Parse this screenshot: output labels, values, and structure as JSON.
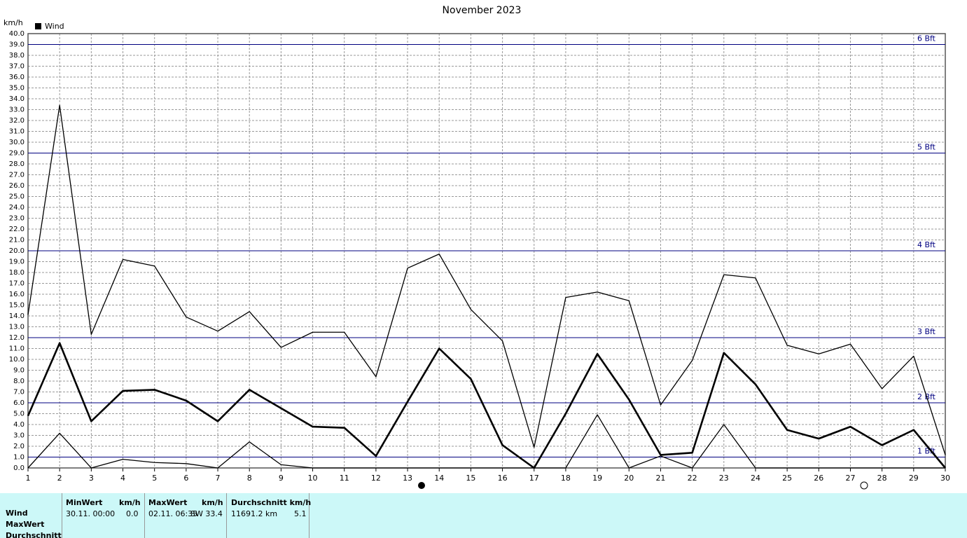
{
  "chart_data": {
    "type": "line",
    "title": "November 2023",
    "y_label": "km/h",
    "legend_label": "Wind",
    "legend_color": "#000000",
    "x": [
      1,
      2,
      3,
      4,
      5,
      6,
      7,
      8,
      9,
      10,
      11,
      12,
      13,
      14,
      15,
      16,
      17,
      18,
      19,
      20,
      21,
      22,
      23,
      24,
      25,
      26,
      27,
      28,
      29,
      30
    ],
    "xlim": [
      1,
      30
    ],
    "xticks": [
      1,
      2,
      3,
      4,
      5,
      6,
      7,
      8,
      9,
      10,
      11,
      12,
      13,
      14,
      15,
      16,
      17,
      18,
      19,
      20,
      21,
      22,
      23,
      24,
      25,
      26,
      27,
      28,
      29,
      30
    ],
    "ylim": [
      0,
      40
    ],
    "yticks": [
      {
        "value": 0,
        "label": "0.0"
      },
      {
        "value": 1,
        "label": "1.0"
      },
      {
        "value": 2,
        "label": "2.0"
      },
      {
        "value": 3,
        "label": "3.0"
      },
      {
        "value": 4,
        "label": "4.0"
      },
      {
        "value": 5,
        "label": "5.0"
      },
      {
        "value": 6,
        "label": "6.0"
      },
      {
        "value": 7,
        "label": "7.0"
      },
      {
        "value": 8,
        "label": "8.0"
      },
      {
        "value": 9,
        "label": "9.0"
      },
      {
        "value": 10,
        "label": "10.0"
      },
      {
        "value": 11,
        "label": "11.0"
      },
      {
        "value": 12,
        "label": "12.0"
      },
      {
        "value": 13,
        "label": "13.0"
      },
      {
        "value": 14,
        "label": "14.0"
      },
      {
        "value": 15,
        "label": "15.0"
      },
      {
        "value": 16,
        "label": "16.0"
      },
      {
        "value": 17,
        "label": "17.0"
      },
      {
        "value": 18,
        "label": "18.0"
      },
      {
        "value": 19,
        "label": "19.0"
      },
      {
        "value": 20,
        "label": "20.0"
      },
      {
        "value": 21,
        "label": "21.0"
      },
      {
        "value": 22,
        "label": "22.0"
      },
      {
        "value": 23,
        "label": "23.0"
      },
      {
        "value": 24,
        "label": "24.0"
      },
      {
        "value": 25,
        "label": "25.0"
      },
      {
        "value": 26,
        "label": "26.0"
      },
      {
        "value": 27,
        "label": "27.0"
      },
      {
        "value": 28,
        "label": "28.0"
      },
      {
        "value": 29,
        "label": "29.0"
      },
      {
        "value": 30,
        "label": "30.0"
      },
      {
        "value": 31,
        "label": "31.0"
      },
      {
        "value": 32,
        "label": "32.0"
      },
      {
        "value": 33,
        "label": "33.0"
      },
      {
        "value": 34,
        "label": "34.0"
      },
      {
        "value": 35,
        "label": "35.0"
      },
      {
        "value": 36,
        "label": "36.0"
      },
      {
        "value": 37,
        "label": "37.0"
      },
      {
        "value": 38,
        "label": "38.0"
      },
      {
        "value": 39,
        "label": "39.0"
      },
      {
        "value": 40,
        "label": "40.0"
      }
    ],
    "grid": true,
    "reference_lines": [
      {
        "value": 1,
        "label": "1 Bft"
      },
      {
        "value": 6,
        "label": "2 Bft"
      },
      {
        "value": 12,
        "label": "3 Bft"
      },
      {
        "value": 20,
        "label": "4 Bft"
      },
      {
        "value": 29,
        "label": "5 Bft"
      },
      {
        "value": 39,
        "label": "6 Bft"
      }
    ],
    "reference_color": "#000080",
    "series": [
      {
        "color": "#000000",
        "width": 1.3,
        "values": [
          14.1,
          33.4,
          12.3,
          19.2,
          18.6,
          13.9,
          12.6,
          14.4,
          11.1,
          12.5,
          12.5,
          8.4,
          18.4,
          19.7,
          14.6,
          11.7,
          1.9,
          15.7,
          16.2,
          15.4,
          5.8,
          9.9,
          17.8,
          17.5,
          11.3,
          10.5,
          11.4,
          7.3,
          10.3,
          1.2
        ]
      },
      {
        "color": "#000000",
        "width": 2.6,
        "values": [
          4.8,
          11.5,
          4.3,
          7.1,
          7.2,
          6.2,
          4.3,
          7.2,
          5.5,
          3.8,
          3.7,
          1.1,
          6.1,
          11.0,
          8.2,
          2.1,
          0.0,
          5.0,
          10.5,
          6.3,
          1.2,
          1.4,
          10.6,
          7.7,
          3.5,
          2.7,
          3.8,
          2.1,
          3.5,
          0.0
        ]
      },
      {
        "color": "#000000",
        "width": 1.3,
        "values": [
          0.0,
          3.2,
          0.0,
          0.8,
          0.5,
          0.4,
          0.0,
          2.4,
          0.3,
          0.0,
          0.0,
          0.0,
          0.0,
          0.0,
          0.0,
          0.0,
          0.0,
          0.0,
          4.9,
          0.0,
          1.1,
          0.0,
          4.0,
          0.0,
          0.0,
          0.0,
          0.0,
          0.0,
          0.0,
          0.0
        ]
      }
    ]
  },
  "table": {
    "headers": [
      "MinWert",
      "km/h",
      "MaxWert",
      "km/h",
      "Durchschnitt km/h"
    ],
    "row_labels": [
      "Wind",
      "MaxWert",
      "Durchschnitt"
    ],
    "cells": [
      "30.11.  00:00",
      "0.0",
      "02.11.  06:35",
      "SW 33.4",
      "11691.2 km",
      "5.1"
    ]
  }
}
